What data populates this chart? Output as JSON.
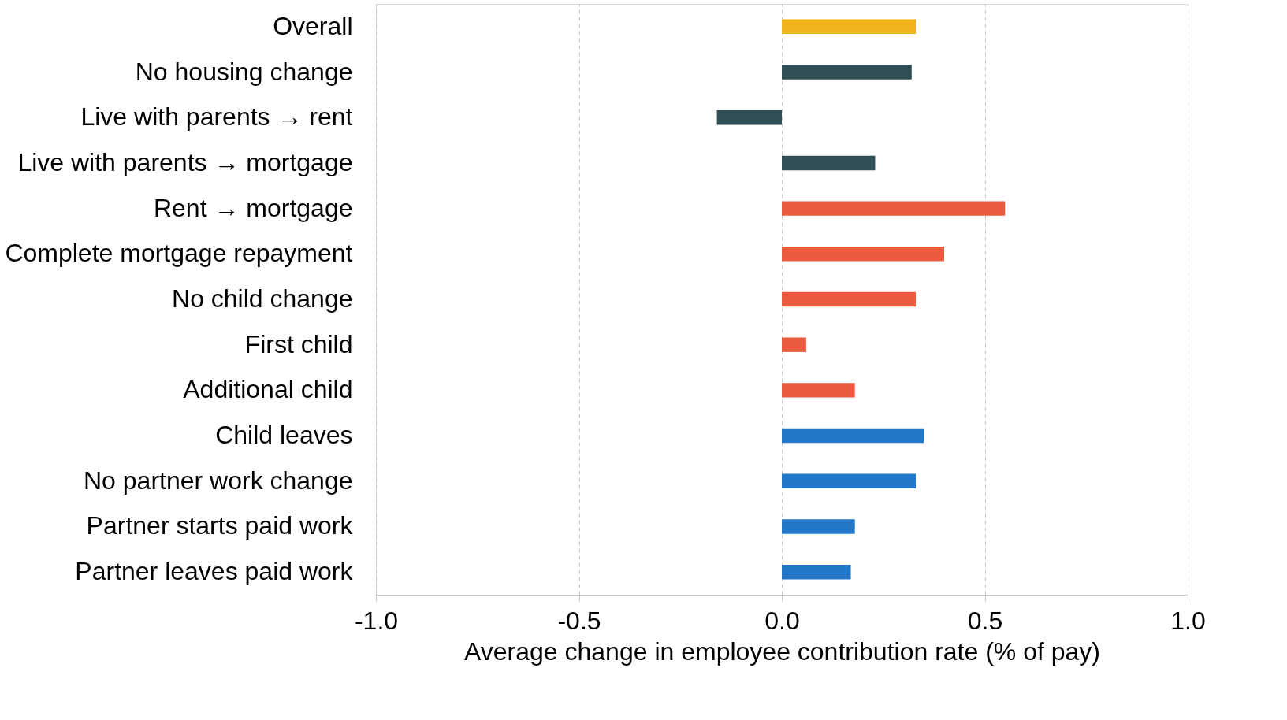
{
  "chart_data": {
    "type": "bar",
    "orientation": "horizontal",
    "xlabel": "Average change in employee contribution rate (% of pay)",
    "categories": [
      "Overall",
      "No housing change",
      "Live with parents → rent",
      "Live with parents → mortgage",
      "Rent → mortgage",
      "Complete mortgage repayment",
      "No child change",
      "First child",
      "Additional child",
      "Child leaves",
      "No partner work change",
      "Partner starts paid work",
      "Partner leaves paid work"
    ],
    "values": [
      0.33,
      0.32,
      -0.16,
      0.23,
      0.55,
      0.4,
      0.33,
      0.06,
      0.18,
      0.35,
      0.33,
      0.18,
      0.17
    ],
    "colors": [
      "#f0b41c",
      "#2f4f55",
      "#2f4f55",
      "#2f4f55",
      "#ec5b40",
      "#ec5b40",
      "#ec5b40",
      "#ec5b40",
      "#ec5b40",
      "#2277c9",
      "#2277c9",
      "#2277c9",
      "#2277c9"
    ],
    "xlim": [
      -1.0,
      1.0
    ],
    "xticks": [
      {
        "value": -1.0,
        "label": "-1.0"
      },
      {
        "value": -0.5,
        "label": "-0.5"
      },
      {
        "value": 0.0,
        "label": "0.0"
      },
      {
        "value": 0.5,
        "label": "0.5"
      },
      {
        "value": 1.0,
        "label": "1.0"
      }
    ],
    "grid": "x"
  }
}
